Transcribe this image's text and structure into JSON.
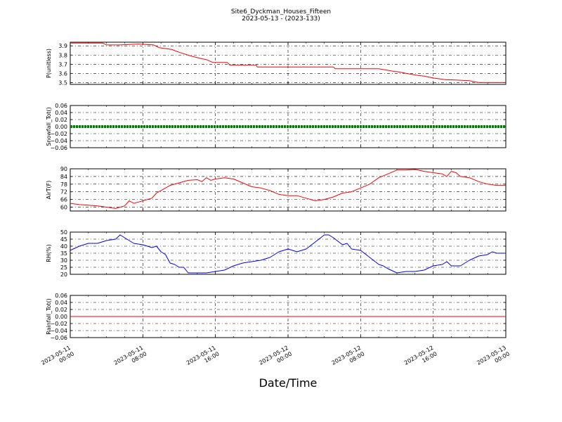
{
  "figure": {
    "title": "Site6_Dyckman_Houses_Fifteen",
    "subtitle": "2023-05-13 - (2023-133)",
    "xlabel": "Date/Time",
    "x_ticks": [
      {
        "line1": "2023-05-11",
        "line2": "00:00",
        "h": 0
      },
      {
        "line1": "2023-05-11",
        "line2": "08:00",
        "h": 8
      },
      {
        "line1": "2023-05-11",
        "line2": "16:00",
        "h": 16
      },
      {
        "line1": "2023-05-12",
        "line2": "00:00",
        "h": 24
      },
      {
        "line1": "2023-05-12",
        "line2": "08:00",
        "h": 32
      },
      {
        "line1": "2023-05-12",
        "line2": "16:00",
        "h": 40
      },
      {
        "line1": "2023-05-13",
        "line2": "00:00",
        "h": 48
      }
    ]
  },
  "chart_data": [
    {
      "type": "line",
      "ylabel": "P(unitless)",
      "ylim": [
        3.48,
        3.94
      ],
      "yticks": [
        3.5,
        3.6,
        3.7,
        3.8,
        3.9
      ],
      "ytick_labels": [
        "3.5",
        "3.6",
        "3.7",
        "3.8",
        "3.9"
      ],
      "grid": true,
      "color": "#ff0000",
      "x": [
        0,
        3.6,
        4.0,
        5.5,
        7.5,
        9.2,
        9.8,
        11.2,
        12.0,
        13.3,
        14.5,
        15.0,
        15.7,
        17.3,
        17.6,
        20.5,
        20.6,
        29.0,
        29.2,
        32.0,
        32.2,
        34.0,
        35.8,
        36.0,
        37.0,
        38.2,
        39.0,
        40.0,
        41.5,
        42.0,
        44.0,
        45.0,
        47.0,
        48.0
      ],
      "y": [
        3.93,
        3.93,
        3.91,
        3.91,
        3.92,
        3.91,
        3.88,
        3.86,
        3.83,
        3.79,
        3.76,
        3.75,
        3.72,
        3.72,
        3.69,
        3.69,
        3.67,
        3.67,
        3.65,
        3.65,
        3.65,
        3.65,
        3.62,
        3.62,
        3.6,
        3.58,
        3.57,
        3.55,
        3.53,
        3.53,
        3.52,
        3.5,
        3.5,
        3.5
      ]
    },
    {
      "type": "line",
      "ylabel": "Snowfall_Tot()",
      "ylim": [
        -0.06,
        0.06
      ],
      "yticks": [
        -0.06,
        -0.04,
        -0.02,
        0.0,
        0.02,
        0.04,
        0.06
      ],
      "ytick_labels": [
        "−0.06",
        "−0.04",
        "−0.02",
        "0.00",
        "0.02",
        "0.04",
        "0.06"
      ],
      "grid": true,
      "color": "#008000",
      "line_style": "thick",
      "x": [
        0,
        48
      ],
      "y": [
        0,
        0
      ]
    },
    {
      "type": "line",
      "ylabel": "AirT(F)",
      "ylim": [
        57,
        90
      ],
      "yticks": [
        60,
        66,
        72,
        78,
        84,
        90
      ],
      "ytick_labels": [
        "60",
        "66",
        "72",
        "78",
        "84",
        "90"
      ],
      "grid": true,
      "color": "#ff0000",
      "x": [
        0,
        1,
        2,
        3,
        4,
        5,
        6,
        6.5,
        7,
        7.5,
        8,
        9,
        9.5,
        10,
        11,
        12,
        13,
        14,
        14.5,
        15,
        15.5,
        16,
        17,
        18,
        19,
        20,
        21,
        22,
        23,
        24,
        25,
        26,
        27,
        28,
        29,
        30,
        31,
        32,
        33,
        34,
        35,
        36,
        37,
        38,
        39,
        40,
        41,
        41.5,
        42,
        42.5,
        43,
        44,
        45,
        46,
        47,
        48
      ],
      "y": [
        63,
        62,
        61.5,
        61,
        60,
        59,
        61,
        65,
        63,
        64,
        65,
        67,
        71,
        73,
        77,
        79,
        81,
        81.5,
        80,
        83,
        81,
        82,
        83,
        82,
        79,
        76,
        75,
        73,
        70,
        69,
        69,
        67,
        65,
        66,
        68,
        71,
        72,
        75,
        78,
        83,
        86,
        89,
        89,
        89.5,
        88,
        87,
        86,
        84,
        88,
        87,
        84,
        83,
        80,
        78,
        77,
        77
      ]
    },
    {
      "type": "line",
      "ylabel": "RH(%)",
      "ylim": [
        20,
        50
      ],
      "yticks": [
        20,
        25,
        30,
        35,
        40,
        45,
        50
      ],
      "ytick_labels": [
        "20",
        "25",
        "30",
        "35",
        "40",
        "45",
        "50"
      ],
      "grid": true,
      "color": "#0000ff",
      "x": [
        0,
        1,
        2,
        3,
        4,
        5,
        5.5,
        6,
        7,
        8,
        9,
        9.5,
        10,
        10.5,
        11,
        11.5,
        12,
        12.5,
        13,
        14,
        15,
        16,
        17,
        18,
        19,
        20,
        21,
        22,
        23,
        24,
        25,
        26,
        27,
        28,
        28.5,
        29,
        30,
        30.5,
        31,
        32,
        33,
        34,
        34.5,
        35,
        36,
        37,
        38,
        39,
        40,
        41,
        41.5,
        42,
        43,
        44,
        45,
        46,
        46.5,
        47,
        48
      ],
      "y": [
        37,
        40,
        42,
        42,
        44,
        45,
        48,
        46,
        42,
        41,
        39,
        40,
        36,
        34,
        28,
        27,
        25,
        25,
        21,
        21,
        21,
        22,
        23,
        26,
        28,
        29,
        30,
        32,
        36,
        38,
        36,
        38,
        43,
        48,
        48,
        46,
        41,
        42,
        38,
        37,
        32,
        27,
        26,
        24,
        21,
        22,
        22,
        23,
        26,
        27,
        29,
        26,
        26,
        30,
        33,
        34,
        36,
        35,
        35
      ]
    },
    {
      "type": "line",
      "ylabel": "Rainfall_Tot()",
      "ylim": [
        -0.06,
        0.06
      ],
      "yticks": [
        -0.06,
        -0.04,
        -0.02,
        0.0,
        0.02,
        0.04,
        0.06
      ],
      "ytick_labels": [
        "−0.06",
        "−0.04",
        "−0.02",
        "0.00",
        "0.02",
        "0.04",
        "0.06"
      ],
      "grid": true,
      "color": "#ff0000",
      "x": [
        0,
        48
      ],
      "y": [
        0,
        0
      ]
    }
  ]
}
